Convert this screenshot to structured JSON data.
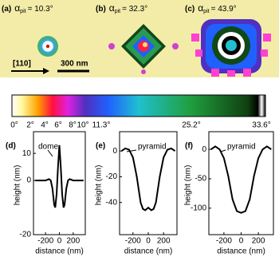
{
  "panels": [
    {
      "label": "(a)",
      "symbol": "α",
      "sub": "pit",
      "angle": "= 10.3°"
    },
    {
      "label": "(b)",
      "symbol": "α",
      "sub": "pit",
      "angle": "= 32.3°"
    },
    {
      "label": "(c)",
      "symbol": "α",
      "sub": "pit",
      "angle": "= 43.9°"
    }
  ],
  "scale": {
    "direction": "[110]",
    "length": "300 nm"
  },
  "colorbar": {
    "labels": [
      "0°",
      "2°",
      "4°",
      "6°",
      "8°",
      "10°",
      "11.3°",
      "25.2°",
      "33.6°"
    ]
  },
  "chart_data": [
    {
      "type": "line",
      "panel": "(d)",
      "annotation": "dome",
      "xlabel": "distance (nm)",
      "ylabel": "height (nm)",
      "color": "#000000",
      "x": [
        -350,
        -300,
        -250,
        -200,
        -150,
        -125,
        -100,
        -75,
        -60,
        -40,
        -20,
        0,
        20,
        40,
        60,
        75,
        100,
        125,
        150,
        200,
        250,
        300,
        350
      ],
      "values": [
        0,
        0,
        0,
        0,
        0.5,
        0,
        -3,
        -9,
        -10,
        -5,
        5,
        13,
        5,
        -5,
        -10,
        -9,
        -3,
        0,
        0.5,
        0,
        0,
        0,
        0
      ],
      "xlim": [
        -375,
        375
      ],
      "ylim": [
        -20,
        18
      ],
      "xticks": [
        -200,
        0,
        200
      ],
      "yticks": [
        -20,
        0,
        10
      ]
    },
    {
      "type": "line",
      "panel": "(e)",
      "annotation": "pyramid",
      "xlabel": "distance (nm)",
      "ylabel": "height (nm)",
      "color": "#000000",
      "x": [
        -350,
        -300,
        -250,
        -200,
        -150,
        -100,
        -70,
        -40,
        0,
        40,
        70,
        100,
        150,
        200,
        250,
        300,
        350
      ],
      "values": [
        0,
        2,
        1,
        -5,
        -20,
        -40,
        -45,
        -46,
        -44,
        -46,
        -45,
        -40,
        -20,
        -5,
        1,
        2,
        0
      ],
      "xlim": [
        -375,
        375
      ],
      "ylim": [
        -65,
        15
      ],
      "xticks": [
        -200,
        0,
        200
      ],
      "yticks": [
        -40,
        -20,
        0
      ]
    },
    {
      "type": "line",
      "panel": "(f)",
      "annotation": "pyramid",
      "xlabel": "distance (nm)",
      "ylabel": "height (nm)",
      "color": "#000000",
      "x": [
        -350,
        -300,
        -250,
        -200,
        -150,
        -100,
        -50,
        0,
        50,
        100,
        150,
        200,
        250,
        300,
        350
      ],
      "values": [
        0,
        5,
        0,
        -15,
        -45,
        -85,
        -105,
        -108,
        -105,
        -85,
        -45,
        -15,
        0,
        5,
        0
      ],
      "xlim": [
        -375,
        375
      ],
      "ylim": [
        -145,
        30
      ],
      "xticks": [
        -200,
        0,
        200
      ],
      "yticks": [
        -100,
        -50,
        0
      ]
    }
  ]
}
